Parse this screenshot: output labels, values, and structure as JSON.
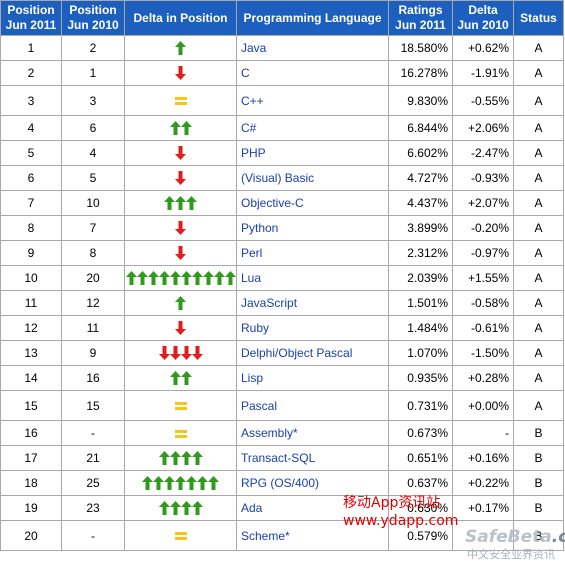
{
  "headers": {
    "pos2011": [
      "Position",
      "Jun 2011"
    ],
    "pos2010": [
      "Position",
      "Jun 2010"
    ],
    "delta_pos": "Delta in Position",
    "language": "Programming Language",
    "ratings": [
      "Ratings",
      "Jun 2011"
    ],
    "delta": [
      "Delta",
      "Jun 2010"
    ],
    "status": "Status"
  },
  "colors": {
    "header_bg": "#1d5fbf",
    "up": "#2f9a1c",
    "down": "#e31b1b",
    "same": "#f5c518",
    "link": "#1a3fb0"
  },
  "rows": [
    {
      "pos": "1",
      "prev": "2",
      "change": 1,
      "lang": "Java",
      "rating": "18.580%",
      "delta": "+0.62%",
      "status": "A"
    },
    {
      "pos": "2",
      "prev": "1",
      "change": -1,
      "lang": "C",
      "rating": "16.278%",
      "delta": "-1.91%",
      "status": "A"
    },
    {
      "pos": "3",
      "prev": "3",
      "change": 0,
      "lang": "C++",
      "rating": "9.830%",
      "delta": "-0.55%",
      "status": "A"
    },
    {
      "pos": "4",
      "prev": "6",
      "change": 2,
      "lang": "C#",
      "rating": "6.844%",
      "delta": "+2.06%",
      "status": "A"
    },
    {
      "pos": "5",
      "prev": "4",
      "change": -1,
      "lang": "PHP",
      "rating": "6.602%",
      "delta": "-2.47%",
      "status": "A"
    },
    {
      "pos": "6",
      "prev": "5",
      "change": -1,
      "lang": "(Visual) Basic",
      "rating": "4.727%",
      "delta": "-0.93%",
      "status": "A"
    },
    {
      "pos": "7",
      "prev": "10",
      "change": 3,
      "lang": "Objective-C",
      "rating": "4.437%",
      "delta": "+2.07%",
      "status": "A"
    },
    {
      "pos": "8",
      "prev": "7",
      "change": -1,
      "lang": "Python",
      "rating": "3.899%",
      "delta": "-0.20%",
      "status": "A"
    },
    {
      "pos": "9",
      "prev": "8",
      "change": -1,
      "lang": "Perl",
      "rating": "2.312%",
      "delta": "-0.97%",
      "status": "A"
    },
    {
      "pos": "10",
      "prev": "20",
      "change": 10,
      "lang": "Lua",
      "rating": "2.039%",
      "delta": "+1.55%",
      "status": "A"
    },
    {
      "pos": "11",
      "prev": "12",
      "change": 1,
      "lang": "JavaScript",
      "rating": "1.501%",
      "delta": "-0.58%",
      "status": "A"
    },
    {
      "pos": "12",
      "prev": "11",
      "change": -1,
      "lang": "Ruby",
      "rating": "1.484%",
      "delta": "-0.61%",
      "status": "A"
    },
    {
      "pos": "13",
      "prev": "9",
      "change": -4,
      "lang": "Delphi/Object Pascal",
      "rating": "1.070%",
      "delta": "-1.50%",
      "status": "A"
    },
    {
      "pos": "14",
      "prev": "16",
      "change": 2,
      "lang": "Lisp",
      "rating": "0.935%",
      "delta": "+0.28%",
      "status": "A"
    },
    {
      "pos": "15",
      "prev": "15",
      "change": 0,
      "lang": "Pascal",
      "rating": "0.731%",
      "delta": "+0.00%",
      "status": "A"
    },
    {
      "pos": "16",
      "prev": "-",
      "change": 0,
      "lang": "Assembly*",
      "rating": "0.673%",
      "delta": "-",
      "status": "B"
    },
    {
      "pos": "17",
      "prev": "21",
      "change": 4,
      "lang": "Transact-SQL",
      "rating": "0.651%",
      "delta": "+0.16%",
      "status": "B"
    },
    {
      "pos": "18",
      "prev": "25",
      "change": 7,
      "lang": "RPG (OS/400)",
      "rating": "0.637%",
      "delta": "+0.22%",
      "status": "B"
    },
    {
      "pos": "19",
      "prev": "23",
      "change": 4,
      "lang": "Ada",
      "rating": "0.630%",
      "delta": "+0.17%",
      "status": "B"
    },
    {
      "pos": "20",
      "prev": "-",
      "change": 0,
      "lang": "Scheme*",
      "rating": "0.579%",
      "delta": "",
      "status": "B"
    }
  ],
  "watermark": {
    "line1": "移动App资讯站",
    "line2": "www.ydapp.com",
    "logo_main": "SafeBeta",
    "logo_suffix": ".cn",
    "logo_sub": "中文安全业界资讯"
  }
}
